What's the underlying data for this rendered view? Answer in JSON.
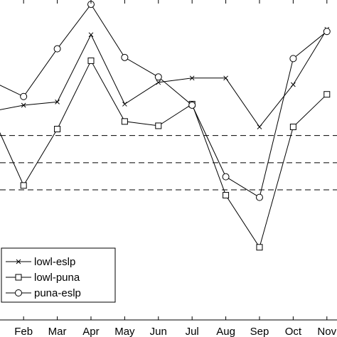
{
  "chart_data": {
    "type": "line",
    "x_labels": [
      "Feb",
      "Mar",
      "Apr",
      "May",
      "Jun",
      "Jul",
      "Aug",
      "Sep",
      "Oct",
      "Nov"
    ],
    "x_positions": [
      2,
      3,
      4,
      5,
      6,
      7,
      8,
      9,
      10,
      11
    ],
    "xlim": [
      1.3,
      11.3
    ],
    "ylim": [
      -1.7,
      1.25
    ],
    "grid": false,
    "legend_position": "lower-left",
    "reference_lines": [
      {
        "y": 0.0,
        "style": "dashed",
        "color": "#000000"
      },
      {
        "y": -0.25,
        "style": "dashed",
        "color": "#000000"
      },
      {
        "y": -0.5,
        "style": "dashed",
        "color": "#000000"
      }
    ],
    "series": [
      {
        "name": "lowl-eslp",
        "marker": "x",
        "color": "#000000",
        "x": [
          1,
          2,
          3,
          4,
          5,
          6,
          7,
          8,
          9,
          10,
          11
        ],
        "y": [
          0.22,
          0.28,
          0.31,
          0.93,
          0.29,
          0.49,
          0.53,
          0.53,
          0.08,
          0.47,
          0.98
        ]
      },
      {
        "name": "lowl-puna",
        "marker": "square",
        "color": "#000000",
        "x": [
          1,
          2,
          3,
          4,
          5,
          6,
          7,
          8,
          9,
          10,
          11
        ],
        "y": [
          0.23,
          -0.46,
          0.06,
          0.69,
          0.13,
          0.09,
          0.29,
          -0.55,
          -1.03,
          0.08,
          0.38
        ]
      },
      {
        "name": "puna-eslp",
        "marker": "circle",
        "color": "#000000",
        "x": [
          1,
          2,
          3,
          4,
          5,
          6,
          7,
          8,
          9,
          10,
          11
        ],
        "y": [
          0.51,
          0.36,
          0.8,
          1.21,
          0.72,
          0.54,
          0.28,
          -0.38,
          -0.57,
          0.71,
          0.96
        ]
      }
    ]
  }
}
